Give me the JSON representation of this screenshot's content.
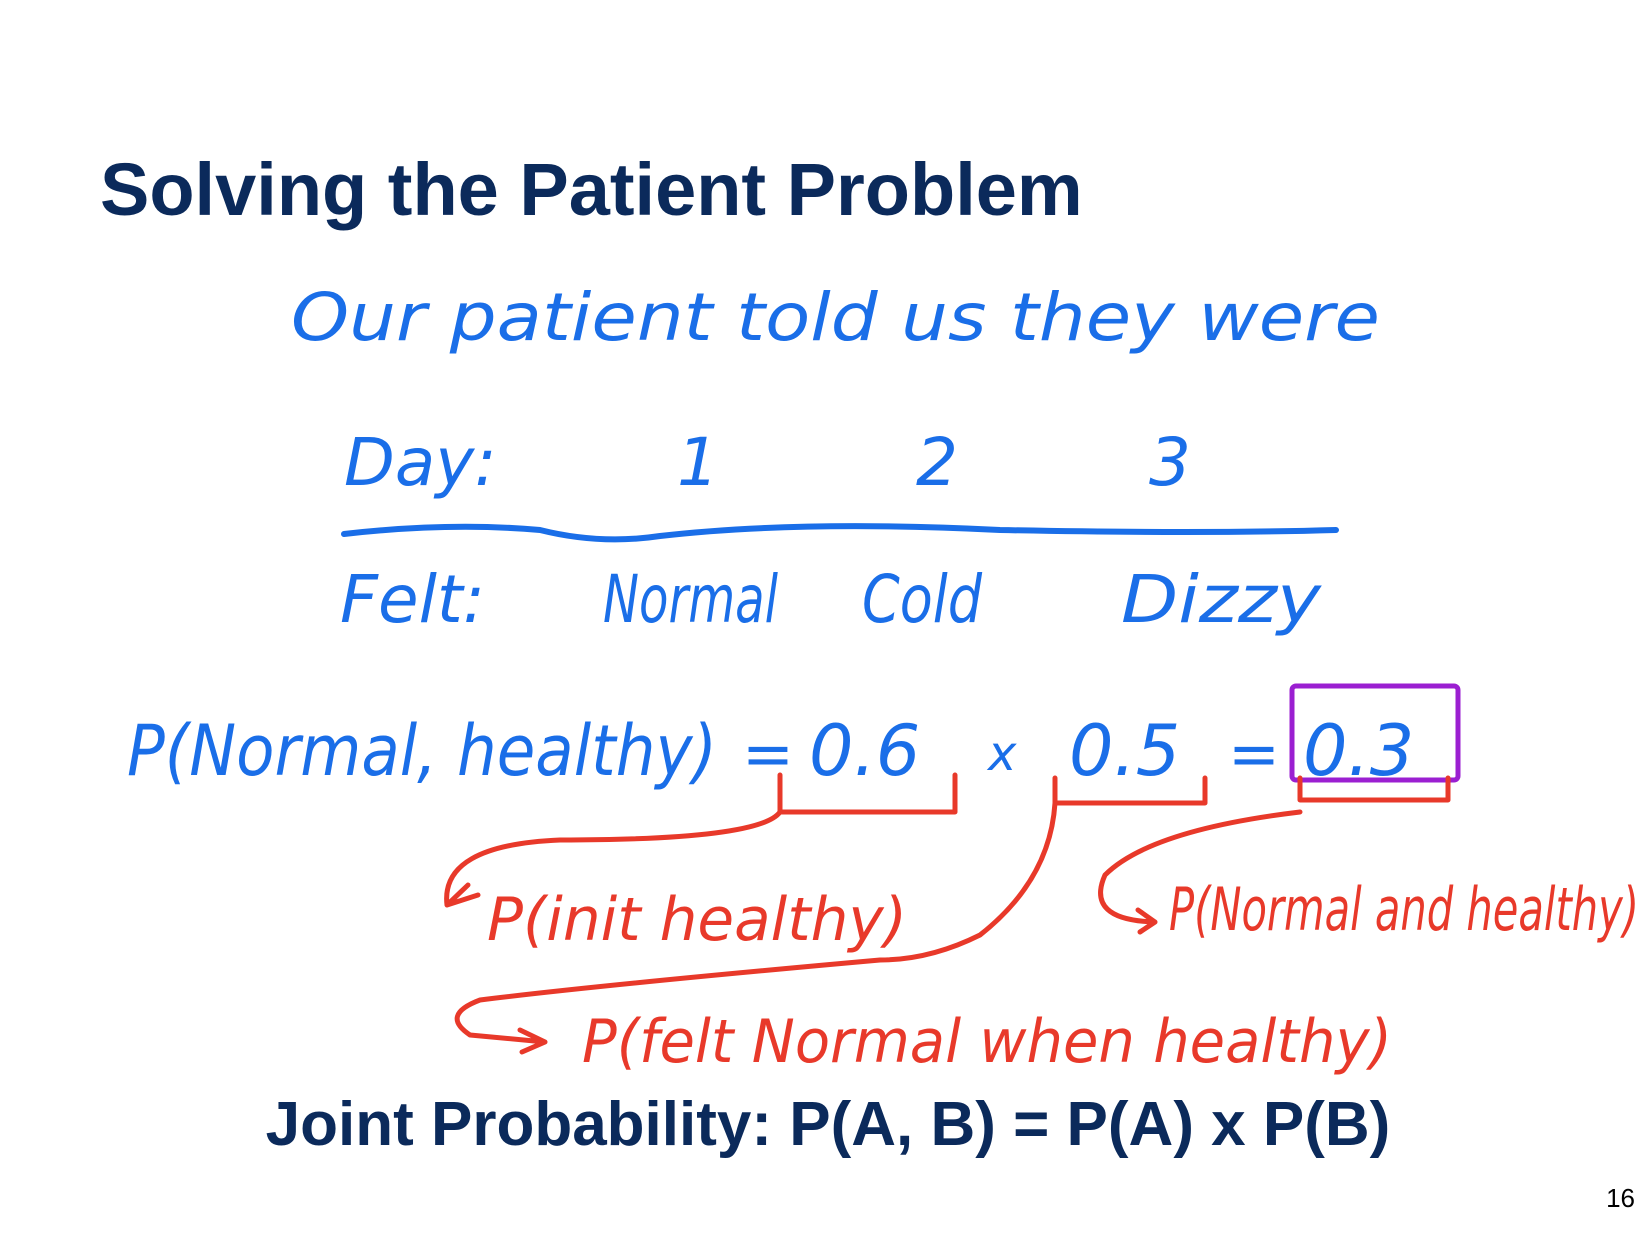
{
  "slide": {
    "title": "Solving the Patient Problem",
    "handwriting": {
      "intro": "Our patient told us they were",
      "table": {
        "header_label": "Day:",
        "days": [
          "1",
          "2",
          "3"
        ],
        "row_label": "Felt:",
        "felt": [
          "Normal",
          "Cold",
          "Dizzy"
        ]
      },
      "equation": {
        "lhs": "P(Normal, healthy)",
        "equals": "=",
        "factor1": "0.6",
        "times": "x",
        "factor2": "0.5",
        "equals2": "=",
        "result": "0.3"
      },
      "annotations": [
        "P(init healthy)",
        "P(felt Normal when healthy)",
        "P(Normal and healthy)"
      ]
    },
    "formula": "Joint Probability: P(A, B) = P(A) x P(B)",
    "page_number": "16"
  }
}
